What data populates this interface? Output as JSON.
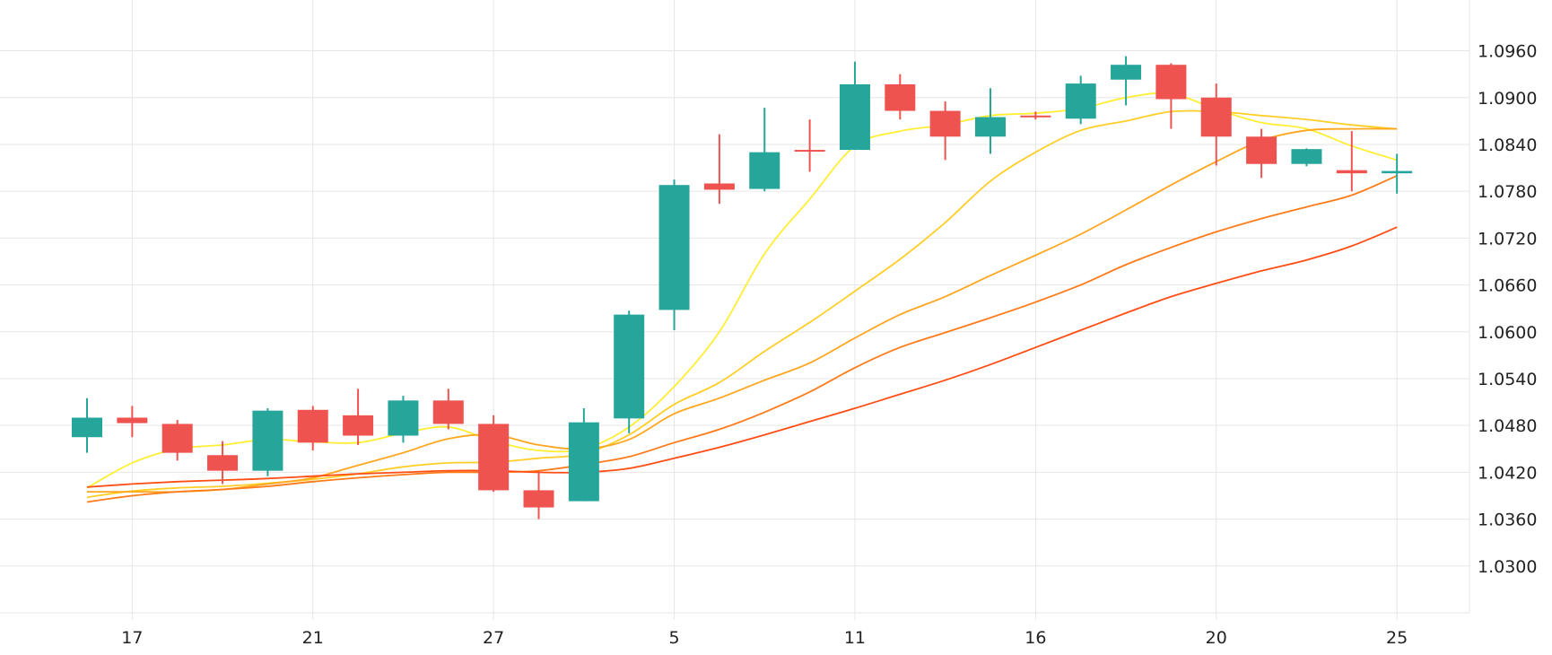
{
  "chart_data": {
    "type": "candlestick",
    "ylim": [
      1.024,
      1.1025
    ],
    "y_ticks": [
      "1.0960",
      "1.0900",
      "1.0840",
      "1.0780",
      "1.0720",
      "1.0660",
      "1.0600",
      "1.0540",
      "1.0480",
      "1.0420",
      "1.0360",
      "1.0300"
    ],
    "x_ticks": [
      {
        "index": 1,
        "label": "17"
      },
      {
        "index": 5,
        "label": "21"
      },
      {
        "index": 9,
        "label": "27"
      },
      {
        "index": 13,
        "label": "5"
      },
      {
        "index": 17,
        "label": "11"
      },
      {
        "index": 21,
        "label": "16"
      },
      {
        "index": 25,
        "label": "20"
      },
      {
        "index": 29,
        "label": "25"
      }
    ],
    "grid": true,
    "up_color": "#26a69a",
    "down_color": "#ef5350",
    "candles": [
      {
        "o": 1.0465,
        "h": 1.0515,
        "l": 1.0445,
        "c": 1.049
      },
      {
        "o": 1.049,
        "h": 1.0505,
        "l": 1.0465,
        "c": 1.0483
      },
      {
        "o": 1.0482,
        "h": 1.0487,
        "l": 1.0435,
        "c": 1.0445
      },
      {
        "o": 1.0442,
        "h": 1.046,
        "l": 1.0405,
        "c": 1.0422
      },
      {
        "o": 1.0422,
        "h": 1.0502,
        "l": 1.0415,
        "c": 1.0499
      },
      {
        "o": 1.05,
        "h": 1.0505,
        "l": 1.0448,
        "c": 1.0458
      },
      {
        "o": 1.0493,
        "h": 1.0527,
        "l": 1.0455,
        "c": 1.0467
      },
      {
        "o": 1.0467,
        "h": 1.0518,
        "l": 1.0458,
        "c": 1.0512
      },
      {
        "o": 1.0512,
        "h": 1.0527,
        "l": 1.0475,
        "c": 1.0482
      },
      {
        "o": 1.0482,
        "h": 1.0493,
        "l": 1.0395,
        "c": 1.0397
      },
      {
        "o": 1.0397,
        "h": 1.0422,
        "l": 1.036,
        "c": 1.0375
      },
      {
        "o": 1.0383,
        "h": 1.0502,
        "l": 1.0383,
        "c": 1.0484
      },
      {
        "o": 1.0489,
        "h": 1.0627,
        "l": 1.047,
        "c": 1.0622
      },
      {
        "o": 1.0628,
        "h": 1.0795,
        "l": 1.0602,
        "c": 1.0788
      },
      {
        "o": 1.079,
        "h": 1.0853,
        "l": 1.0764,
        "c": 1.0782
      },
      {
        "o": 1.0783,
        "h": 1.0887,
        "l": 1.078,
        "c": 1.083
      },
      {
        "o": 1.0833,
        "h": 1.0872,
        "l": 1.0805,
        "c": 1.0831
      },
      {
        "o": 1.0833,
        "h": 1.0946,
        "l": 1.0833,
        "c": 1.0917
      },
      {
        "o": 1.0917,
        "h": 1.093,
        "l": 1.0872,
        "c": 1.0883
      },
      {
        "o": 1.0883,
        "h": 1.0895,
        "l": 1.082,
        "c": 1.085
      },
      {
        "o": 1.085,
        "h": 1.0912,
        "l": 1.0828,
        "c": 1.0875
      },
      {
        "o": 1.0877,
        "h": 1.0882,
        "l": 1.0872,
        "c": 1.0875
      },
      {
        "o": 1.0873,
        "h": 1.0928,
        "l": 1.0866,
        "c": 1.0918
      },
      {
        "o": 1.0923,
        "h": 1.0953,
        "l": 1.089,
        "c": 1.0942
      },
      {
        "o": 1.0942,
        "h": 1.0944,
        "l": 1.086,
        "c": 1.0898
      },
      {
        "o": 1.09,
        "h": 1.0918,
        "l": 1.0813,
        "c": 1.085
      },
      {
        "o": 1.085,
        "h": 1.086,
        "l": 1.0797,
        "c": 1.0815
      },
      {
        "o": 1.0815,
        "h": 1.0835,
        "l": 1.0812,
        "c": 1.0834
      },
      {
        "o": 1.0807,
        "h": 1.0857,
        "l": 1.078,
        "c": 1.0803
      },
      {
        "o": 1.0803,
        "h": 1.0828,
        "l": 1.0777,
        "c": 1.0806
      }
    ],
    "moving_averages": [
      {
        "color": "#ffee32",
        "values": [
          1.04,
          1.0432,
          1.045,
          1.0455,
          1.0462,
          1.0459,
          1.0458,
          1.047,
          1.0478,
          1.046,
          1.0448,
          1.045,
          1.0478,
          1.053,
          1.06,
          1.07,
          1.077,
          1.0838,
          1.0857,
          1.0865,
          1.0877,
          1.088,
          1.0886,
          1.09,
          1.0905,
          1.0885,
          1.0868,
          1.086,
          1.0838,
          1.082
        ]
      },
      {
        "color": "#ffce26",
        "values": [
          1.0388,
          1.0396,
          1.04,
          1.0402,
          1.0406,
          1.0411,
          1.0418,
          1.0427,
          1.0432,
          1.0433,
          1.0438,
          1.0444,
          1.0468,
          1.0507,
          1.0535,
          1.0575,
          1.0612,
          1.0652,
          1.0693,
          1.074,
          1.0793,
          1.083,
          1.0858,
          1.087,
          1.0882,
          1.0882,
          1.0877,
          1.0872,
          1.0865,
          1.086
        ]
      },
      {
        "color": "#ffa61f",
        "values": [
          1.0395,
          1.0395,
          1.0395,
          1.0398,
          1.0405,
          1.0413,
          1.0429,
          1.0445,
          1.0463,
          1.0468,
          1.0455,
          1.045,
          1.0462,
          1.0495,
          1.0515,
          1.0538,
          1.056,
          1.0592,
          1.0622,
          1.0645,
          1.0672,
          1.0698,
          1.0725,
          1.0756,
          1.0788,
          1.0818,
          1.0845,
          1.0858,
          1.086,
          1.086
        ]
      },
      {
        "color": "#ff7b19",
        "values": [
          1.0382,
          1.039,
          1.0395,
          1.0398,
          1.0402,
          1.0408,
          1.0413,
          1.0417,
          1.042,
          1.042,
          1.0422,
          1.043,
          1.044,
          1.0458,
          1.0475,
          1.0497,
          1.0523,
          1.0554,
          1.058,
          1.0599,
          1.0618,
          1.0638,
          1.066,
          1.0686,
          1.0708,
          1.0728,
          1.0745,
          1.076,
          1.0775,
          1.08
        ]
      },
      {
        "color": "#ff4d13",
        "values": [
          1.0401,
          1.0405,
          1.0408,
          1.041,
          1.0412,
          1.0415,
          1.0418,
          1.042,
          1.0422,
          1.0422,
          1.042,
          1.042,
          1.0425,
          1.0438,
          1.0452,
          1.0468,
          1.0485,
          1.0502,
          1.052,
          1.0538,
          1.0558,
          1.058,
          1.0602,
          1.0624,
          1.0645,
          1.0662,
          1.0678,
          1.0692,
          1.071,
          1.0734
        ]
      }
    ]
  }
}
